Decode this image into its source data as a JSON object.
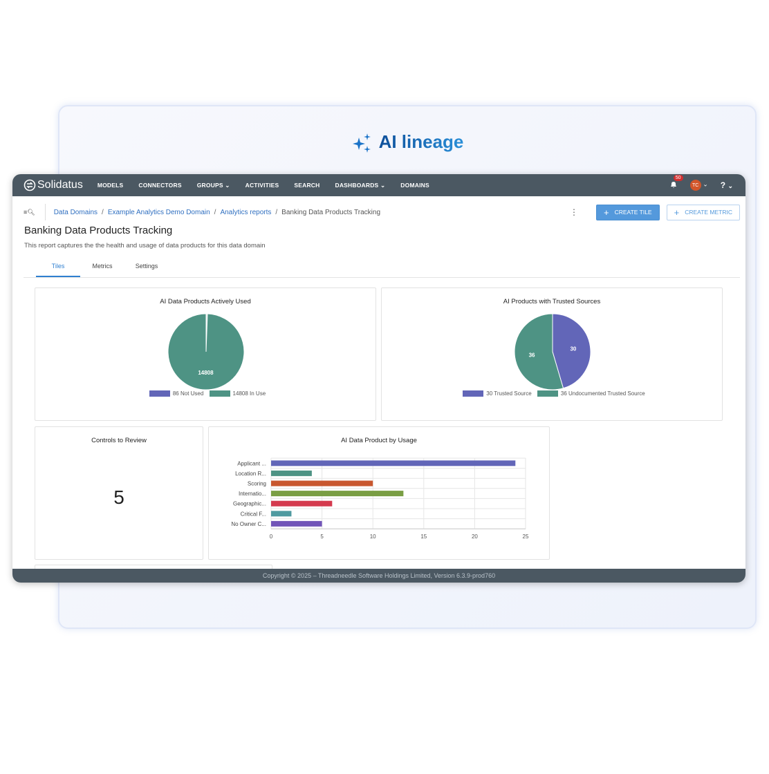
{
  "hero": {
    "title": "AI lineage",
    "icon": "sparkles-icon"
  },
  "nav": {
    "brand": "Solidatus",
    "items": [
      "MODELS",
      "CONNECTORS",
      "GROUPS",
      "ACTIVITIES",
      "SEARCH",
      "DASHBOARDS",
      "DOMAINS"
    ],
    "dropdown_items": [
      "GROUPS",
      "DASHBOARDS"
    ],
    "notifications": "50",
    "avatar": "TC",
    "help": "?"
  },
  "breadcrumb": {
    "items": [
      "Data Domains",
      "Example Analytics Demo Domain",
      "Analytics reports"
    ],
    "current": "Banking Data Products Tracking"
  },
  "toolbar": {
    "create_tile": "CREATE TILE",
    "create_metric": "CREATE METRIC"
  },
  "page": {
    "title": "Banking Data Products Tracking",
    "description": "This report captures the the health and usage of data products for this data domain"
  },
  "tabs": [
    {
      "label": "Tiles",
      "active": true
    },
    {
      "label": "Metrics"
    },
    {
      "label": "Settings"
    }
  ],
  "tiles": {
    "controls": {
      "title": "Controls to Review",
      "value": "5"
    }
  },
  "footer": "Copyright © 2025 – Threadneedle Software Holdings Limited, Version 6.3.9-prod760",
  "colors": {
    "nav": "#4b5862",
    "accent": "#5499dc",
    "teal": "#4e9384",
    "purple": "#6266b8"
  },
  "chart_data": [
    {
      "type": "pie",
      "title": "AI Data Products Actively Used",
      "slices": [
        {
          "label": "86 Not Used",
          "value": 86,
          "color": "#dfe7ea",
          "legend_color": "#6266b8"
        },
        {
          "label": "14808 In Use",
          "value": 14808,
          "color": "#4e9384"
        }
      ],
      "data_labels": [
        "86",
        "14808"
      ]
    },
    {
      "type": "pie",
      "title": "AI Products with Trusted Sources",
      "slices": [
        {
          "label": "30 Trusted Source",
          "value": 30,
          "color": "#6266b8"
        },
        {
          "label": "36 Undocumented Trusted Source",
          "value": 36,
          "color": "#4e9384"
        }
      ],
      "data_labels": [
        "30",
        "36"
      ]
    },
    {
      "type": "bar",
      "orientation": "horizontal",
      "title": "AI Data Product by Usage",
      "categories": [
        "Applicant ...",
        "Location R...",
        "Scoring",
        "Internatio...",
        "Geographic...",
        "Critical F...",
        "No Owner C..."
      ],
      "values": [
        24,
        4,
        10,
        13,
        6,
        2,
        5
      ],
      "colors": [
        "#6266b8",
        "#4e9384",
        "#c8572f",
        "#7a9e44",
        "#d43a4e",
        "#4f9aa0",
        "#7255b8"
      ],
      "xlim": [
        0,
        25
      ],
      "xticks": [
        0,
        5,
        10,
        15,
        20,
        25
      ],
      "grid": true
    }
  ]
}
